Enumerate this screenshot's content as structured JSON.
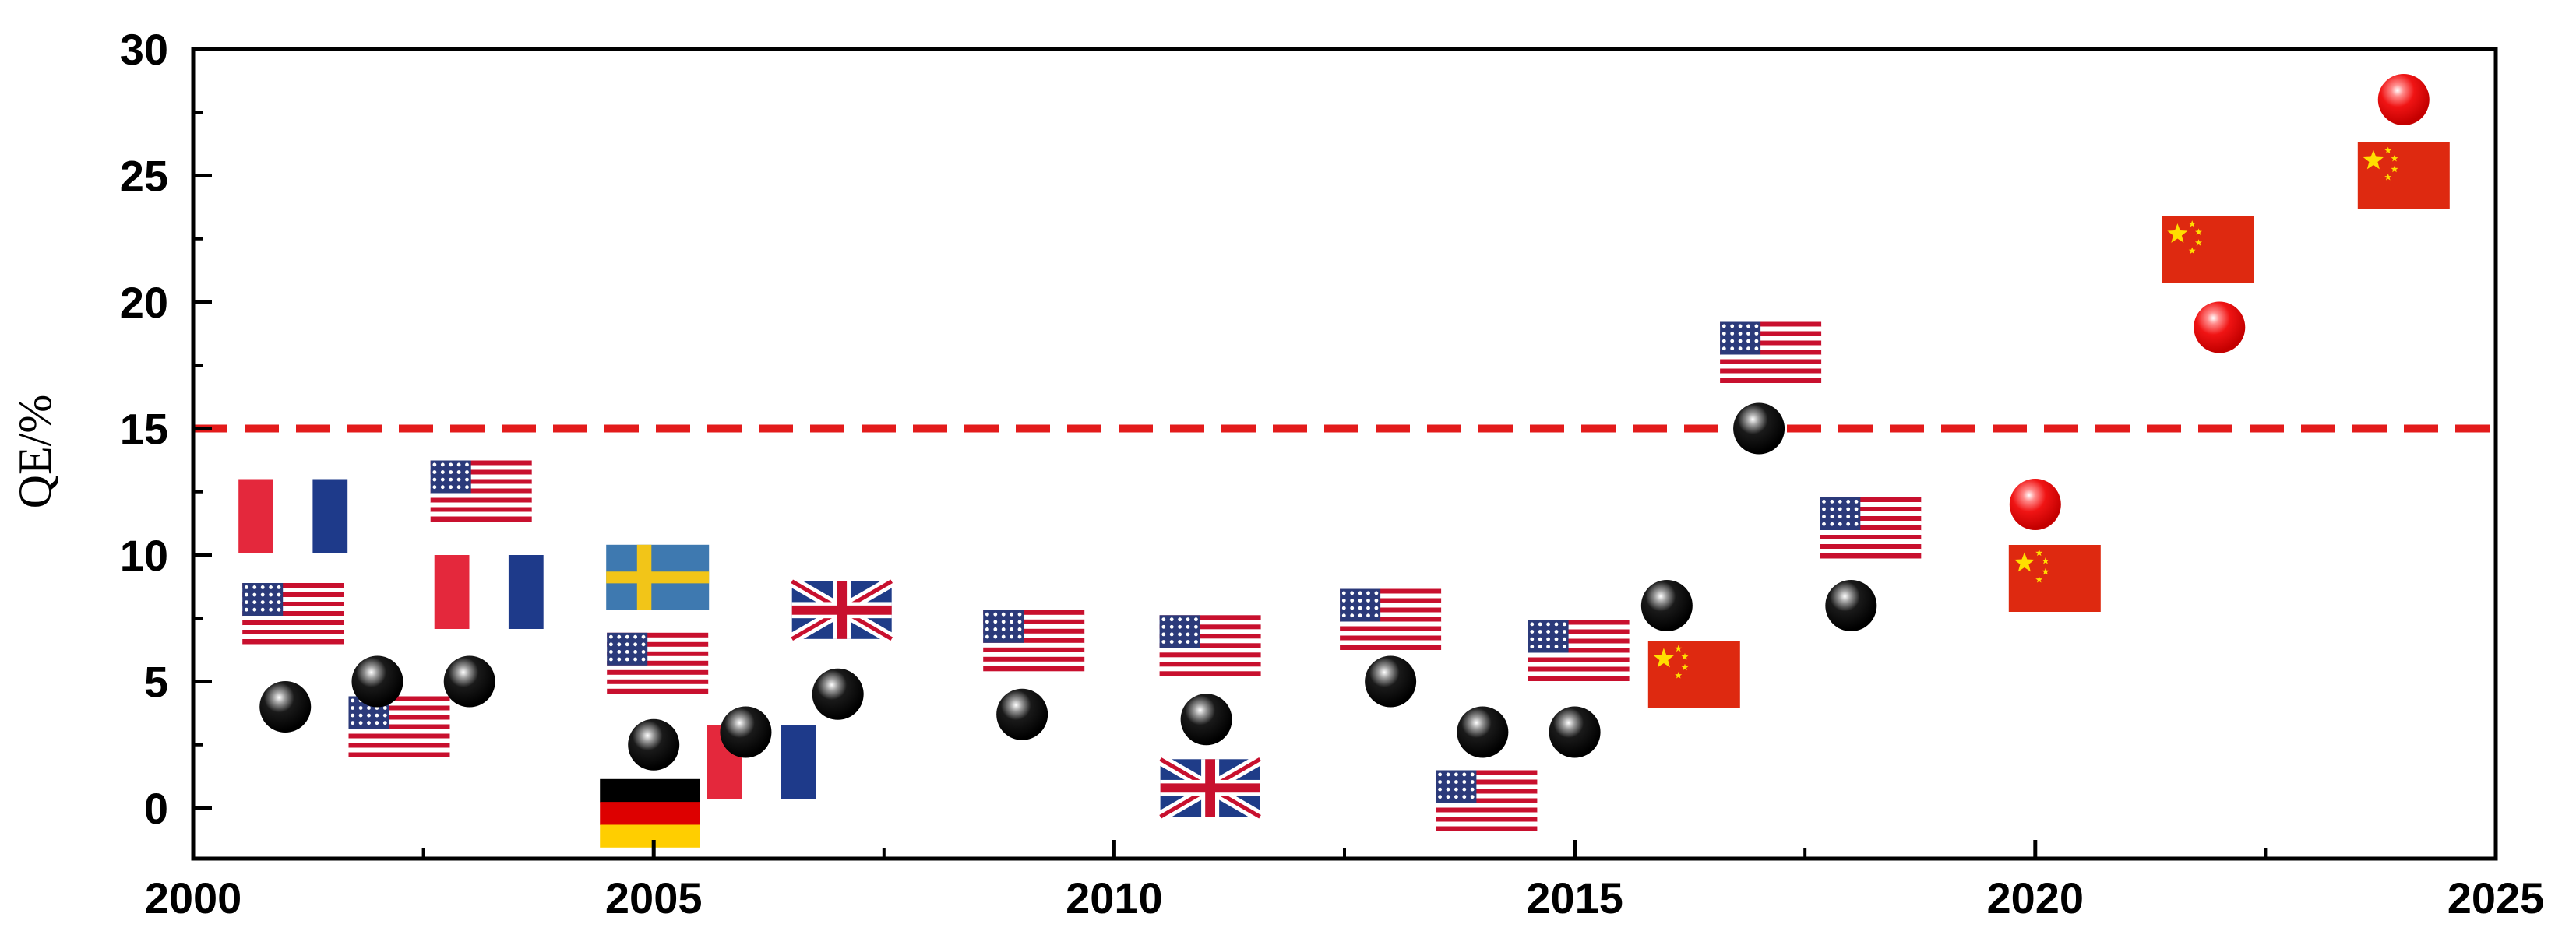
{
  "chart_data": {
    "type": "scatter",
    "title": "",
    "xlabel": "",
    "ylabel": "QE/%",
    "xlim": [
      2000,
      2025
    ],
    "ylim": [
      -2,
      30
    ],
    "x_ticks": [
      "2000",
      "2005",
      "2010",
      "2015",
      "2020",
      "2025"
    ],
    "y_ticks": [
      "0",
      "5",
      "10",
      "15",
      "20",
      "25",
      "30"
    ],
    "grid": false,
    "reference_line": {
      "y": 15,
      "style": "dashed",
      "color": "#e31b1b"
    },
    "colors": {
      "historic": "#000000",
      "recent": "#e31b1b",
      "axis": "#000000"
    },
    "series": [
      {
        "color": "black",
        "points": [
          {
            "x": 2001,
            "y": 4,
            "flags": [
              "flag-france",
              "flag-usa"
            ]
          },
          {
            "x": 2002,
            "y": 5,
            "flags": [
              "flag-usa"
            ]
          },
          {
            "x": 2003,
            "y": 5,
            "flags": [
              "flag-usa",
              "flag-france"
            ]
          },
          {
            "x": 2005,
            "y": 2.5,
            "flags": [
              "flag-sweden",
              "flag-usa",
              "flag-germany"
            ]
          },
          {
            "x": 2006,
            "y": 3,
            "flags": [
              "flag-france"
            ]
          },
          {
            "x": 2007,
            "y": 4.5,
            "flags": [
              "flag-uk"
            ]
          },
          {
            "x": 2009,
            "y": 3.7,
            "flags": [
              "flag-usa"
            ]
          },
          {
            "x": 2011,
            "y": 3.5,
            "flags": [
              "flag-usa",
              "flag-uk"
            ]
          },
          {
            "x": 2013,
            "y": 5,
            "flags": [
              "flag-usa"
            ]
          },
          {
            "x": 2014,
            "y": 3,
            "flags": [
              "flag-usa"
            ]
          },
          {
            "x": 2015,
            "y": 3,
            "flags": [
              "flag-usa"
            ]
          },
          {
            "x": 2016,
            "y": 8,
            "flags": [
              "flag-china"
            ]
          },
          {
            "x": 2017,
            "y": 15,
            "flags": [
              "flag-usa"
            ]
          },
          {
            "x": 2018,
            "y": 8,
            "flags": [
              "flag-usa"
            ]
          }
        ]
      },
      {
        "color": "red",
        "points": [
          {
            "x": 2020,
            "y": 12,
            "flags": [
              "flag-china"
            ]
          },
          {
            "x": 2022,
            "y": 19,
            "flags": [
              "flag-china"
            ]
          },
          {
            "x": 2024,
            "y": 28,
            "flags": [
              "flag-china"
            ]
          }
        ]
      }
    ]
  }
}
